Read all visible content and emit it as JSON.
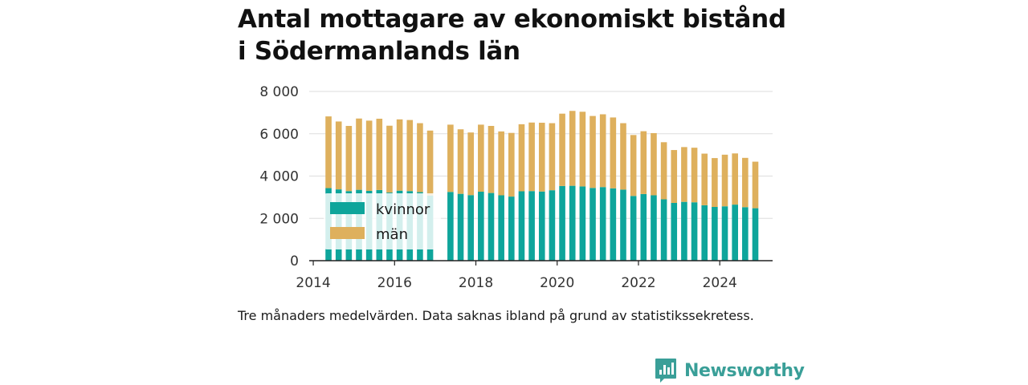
{
  "title_lines": [
    "Antal mottagare av ekonomiskt bistånd",
    "i Södermanlands län"
  ],
  "caption": "Tre månaders medelvärden. Data saknas ibland på grund av statistikssekretess.",
  "brand": {
    "name": "Newsworthy",
    "icon": "bar-chart-logo-icon",
    "color": "#3a9f98"
  },
  "chart_data": {
    "type": "bar",
    "stacked": true,
    "x": [
      2014.375,
      2014.625,
      2014.875,
      2015.125,
      2015.375,
      2015.625,
      2015.875,
      2016.125,
      2016.375,
      2016.625,
      2016.875,
      2017.125,
      2017.375,
      2017.625,
      2017.875,
      2018.125,
      2018.375,
      2018.625,
      2018.875,
      2019.125,
      2019.375,
      2019.625,
      2019.875,
      2020.125,
      2020.375,
      2020.625,
      2020.875,
      2021.125,
      2021.375,
      2021.625,
      2021.875,
      2022.125,
      2022.375,
      2022.625,
      2022.875,
      2023.125,
      2023.375,
      2023.625,
      2023.875,
      2024.125,
      2024.375,
      2024.625,
      2024.875
    ],
    "series": [
      {
        "name": "kvinnor",
        "color": "#0ea59b",
        "values": [
          3430,
          3370,
          3290,
          3350,
          3300,
          3340,
          3220,
          3310,
          3290,
          3240,
          3080,
          null,
          3250,
          3160,
          3100,
          3260,
          3200,
          3090,
          3030,
          3280,
          3290,
          3270,
          3330,
          3530,
          3540,
          3510,
          3440,
          3480,
          3420,
          3360,
          3060,
          3150,
          3090,
          2900,
          2730,
          2780,
          2760,
          2620,
          2540,
          2570,
          2650,
          2530,
          2480
        ]
      },
      {
        "name": "män",
        "color": "#deb05d",
        "values": [
          3390,
          3210,
          3080,
          3370,
          3320,
          3370,
          3160,
          3370,
          3360,
          3260,
          3070,
          null,
          3180,
          3050,
          2960,
          3170,
          3170,
          3020,
          3010,
          3170,
          3240,
          3250,
          3170,
          3420,
          3540,
          3530,
          3400,
          3440,
          3350,
          3140,
          2880,
          2970,
          2940,
          2700,
          2500,
          2590,
          2580,
          2440,
          2310,
          2440,
          2420,
          2330,
          2200
        ]
      }
    ],
    "xlabel": "",
    "ylabel": "",
    "xticks": [
      2014,
      2016,
      2018,
      2020,
      2022,
      2024
    ],
    "xlim": [
      2013.9,
      2025.3
    ],
    "yticks": [
      0,
      2000,
      4000,
      6000,
      8000
    ],
    "ytick_labels": [
      "0",
      "2 000",
      "4 000",
      "6 000",
      "8 000"
    ],
    "ylim": [
      0,
      8000
    ],
    "grid": "horizontal",
    "legend": {
      "position": "bottom-left"
    }
  }
}
